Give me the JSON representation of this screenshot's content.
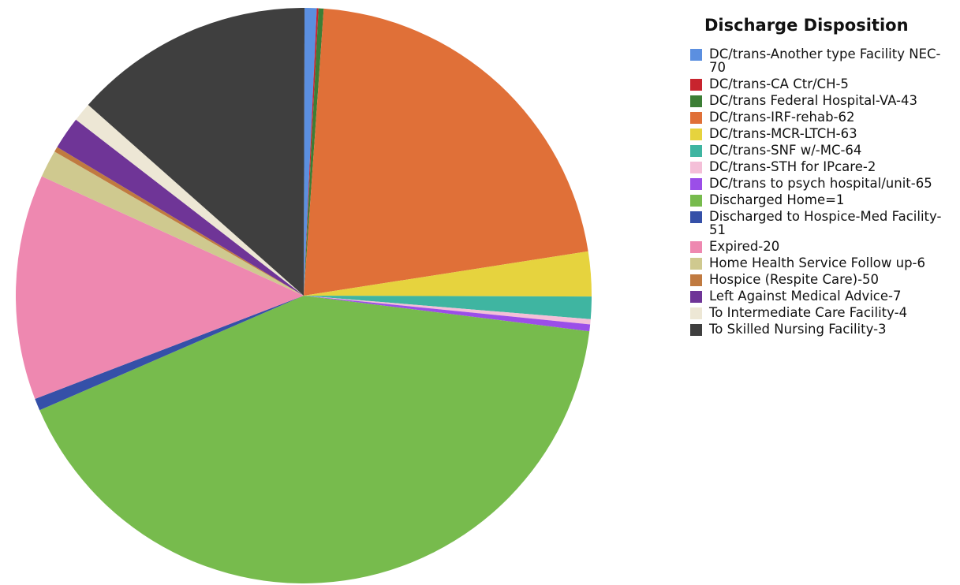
{
  "chart_data": {
    "type": "pie",
    "title": "",
    "legend": {
      "title": "Discharge Disposition",
      "placement": "right"
    },
    "slices": [
      {
        "label": "DC/trans-Another type Facility NEC-70",
        "value": 0.7,
        "color": "#5b8fe0"
      },
      {
        "label": "DC/trans-CA Ctr/CH-5",
        "value": 0.1,
        "color": "#c8242e"
      },
      {
        "label": "DC/trans Federal Hospital-VA-43",
        "value": 0.3,
        "color": "#3c7e35"
      },
      {
        "label": "DC/trans-IRF-rehab-62",
        "value": 22.2,
        "color": "#e07038"
      },
      {
        "label": "DC/trans-MCR-LTCH-63",
        "value": 2.6,
        "color": "#e6d33e"
      },
      {
        "label": "DC/trans-SNF w/-MC-64",
        "value": 1.3,
        "color": "#3fb5a1"
      },
      {
        "label": "DC/trans-STH for IPcare-2",
        "value": 0.3,
        "color": "#f4bfd8"
      },
      {
        "label": "DC/trans to psych hospital/unit-65",
        "value": 0.4,
        "color": "#9b4ee8"
      },
      {
        "label": "Discharged Home=1",
        "value": 43.0,
        "color": "#77bb4d"
      },
      {
        "label": "Discharged to Hospice-Med Facility-51",
        "value": 0.7,
        "color": "#3550a8"
      },
      {
        "label": "Expired-20",
        "value": 13.1,
        "color": "#ee88b0"
      },
      {
        "label": "Home Health Service Follow up-6",
        "value": 1.6,
        "color": "#cfc98f"
      },
      {
        "label": "Hospice (Respite Care)-50",
        "value": 0.3,
        "color": "#c07a40"
      },
      {
        "label": "Left Against Medical Advice-7",
        "value": 1.9,
        "color": "#6f3597"
      },
      {
        "label": "To Intermediate Care Facility-4",
        "value": 1.1,
        "color": "#ede7d5"
      },
      {
        "label": "To Skilled Nursing Facility-3",
        "value": 14.0,
        "color": "#3f3f3f"
      }
    ]
  }
}
